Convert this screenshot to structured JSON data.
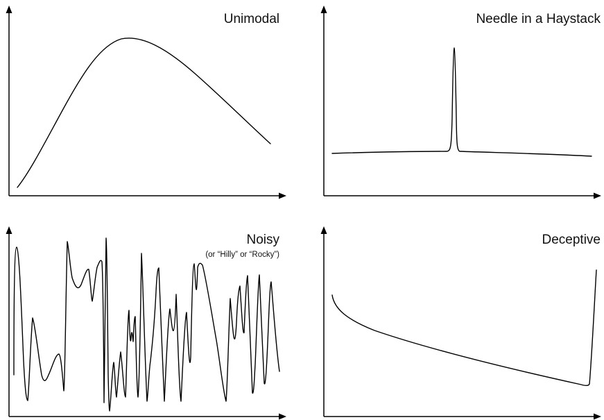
{
  "panels": [
    {
      "id": "unimodal",
      "title": "Unimodal",
      "subtitle": ""
    },
    {
      "id": "needle",
      "title": "Needle in a Haystack",
      "subtitle": ""
    },
    {
      "id": "noisy",
      "title": "Noisy",
      "subtitle": "(or “Hilly” or “Rocky”)"
    },
    {
      "id": "deceptive",
      "title": "Deceptive",
      "subtitle": ""
    }
  ],
  "colors": {
    "line": "#000000",
    "background": "#ffffff"
  }
}
